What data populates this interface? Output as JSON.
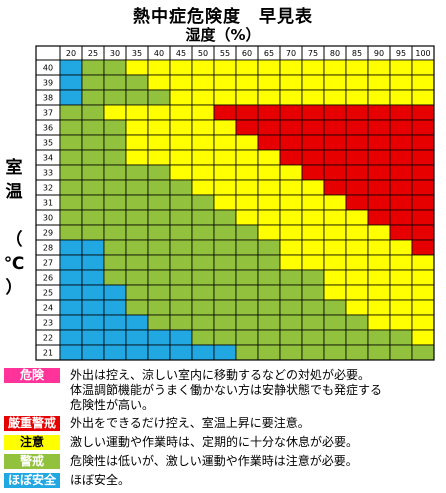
{
  "title": "熱中症危険度　早見表",
  "subtitle": "湿度（%）",
  "ylabel_chars": [
    "室",
    "温",
    "",
    "（",
    "℃",
    "）"
  ],
  "colors": {
    "kiken": "#FF3399",
    "genju": "#E60000",
    "chui": "#FFFF00",
    "keikai": "#92C13E",
    "hobo": "#21A7E1"
  },
  "chart_data": {
    "type": "heatmap",
    "title": "熱中症危険度　早見表",
    "xlabel": "湿度（%）",
    "ylabel": "室温（℃）",
    "x": [
      20,
      25,
      30,
      35,
      40,
      45,
      50,
      55,
      60,
      65,
      70,
      75,
      80,
      85,
      90,
      95,
      100
    ],
    "y": [
      40,
      39,
      38,
      37,
      36,
      35,
      34,
      33,
      32,
      31,
      30,
      29,
      28,
      27,
      26,
      25,
      24,
      23,
      22,
      21
    ],
    "levels": [
      "ほぼ安全",
      "警戒",
      "注意",
      "厳重警戒",
      "危険"
    ],
    "thresholds_by_row": [
      [
        1,
        3,
        100,
        100
      ],
      [
        1,
        4,
        100,
        100
      ],
      [
        1,
        5,
        100,
        100
      ],
      [
        0,
        2,
        7,
        100
      ],
      [
        0,
        3,
        8,
        100
      ],
      [
        0,
        3,
        9,
        100
      ],
      [
        0,
        3,
        10,
        100
      ],
      [
        0,
        5,
        11,
        100
      ],
      [
        0,
        6,
        12,
        100
      ],
      [
        0,
        7,
        13,
        100
      ],
      [
        0,
        8,
        14,
        100
      ],
      [
        0,
        9,
        15,
        100
      ],
      [
        2,
        10,
        16,
        100
      ],
      [
        2,
        10,
        17,
        100
      ],
      [
        2,
        12,
        17,
        100
      ],
      [
        3,
        12,
        17,
        100
      ],
      [
        3,
        13,
        17,
        100
      ],
      [
        4,
        14,
        17,
        100
      ],
      [
        6,
        16,
        17,
        100
      ],
      [
        8,
        17,
        17,
        100
      ]
    ]
  },
  "legend": [
    {
      "key": "危険",
      "color_key": "kiken",
      "text": "外出は控え、涼しい室内に移動するなどの対処が必要。\n体温調節機能がうまく働かない方は安静状態でも発症する\n危険性が高い。"
    },
    {
      "key": "厳重警戒",
      "color_key": "genju",
      "text": "外出をできるだけ控え、室温上昇に要注意。"
    },
    {
      "key": "注意",
      "color_key": "chui",
      "text": "激しい運動や作業時は、定期的に十分な休息が必要。"
    },
    {
      "key": "警戒",
      "color_key": "keikai",
      "text": "危険性は低いが、激しい運動や作業時は注意が必要。"
    },
    {
      "key": "ほぼ安全",
      "color_key": "hobo",
      "text": "ほぼ安全。"
    }
  ]
}
